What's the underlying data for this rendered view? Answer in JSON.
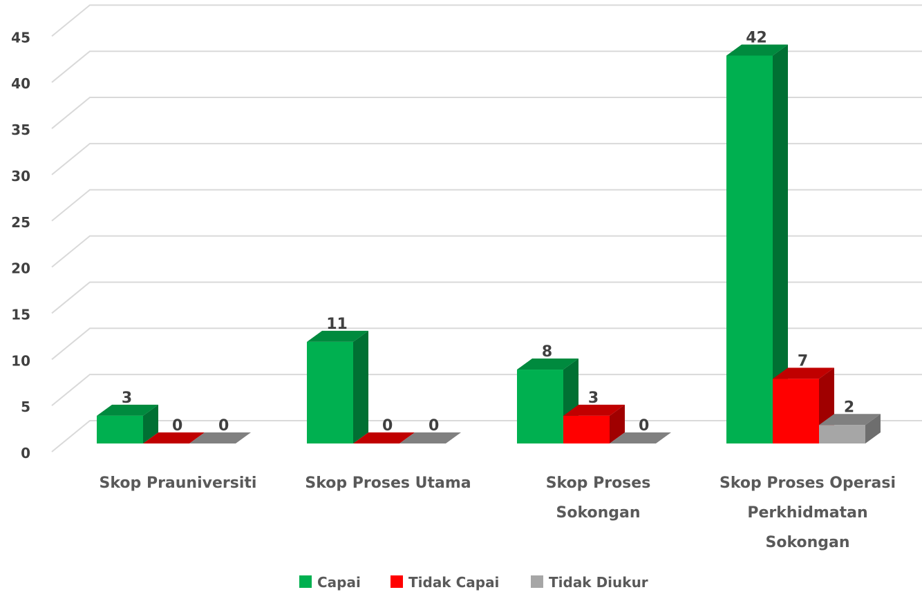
{
  "chart_data": {
    "type": "bar",
    "style": "3d-clustered-column",
    "categories": [
      [
        "Skop Prauniversiti"
      ],
      [
        "Skop Proses Utama"
      ],
      [
        "Skop Proses",
        "Sokongan"
      ],
      [
        "Skop Proses Operasi",
        "Perkhidmatan",
        "Sokongan"
      ]
    ],
    "series": [
      {
        "name": "Capai",
        "values": [
          3,
          11,
          8,
          42
        ],
        "color": "#00B050",
        "side_color": "#007033",
        "top_color": "#008A3E"
      },
      {
        "name": "Tidak Capai",
        "values": [
          0,
          0,
          3,
          7
        ],
        "color": "#FF0000",
        "side_color": "#A00000",
        "top_color": "#C00000"
      },
      {
        "name": "Tidak Diukur",
        "values": [
          0,
          0,
          0,
          2
        ],
        "color": "#A6A6A6",
        "side_color": "#6E6E6E",
        "top_color": "#808080"
      }
    ],
    "ylim": [
      0,
      45
    ],
    "yticks": [
      0,
      5,
      10,
      15,
      20,
      25,
      30,
      35,
      40,
      45
    ],
    "grid": true,
    "legend": "bottom",
    "data_labels": true
  }
}
